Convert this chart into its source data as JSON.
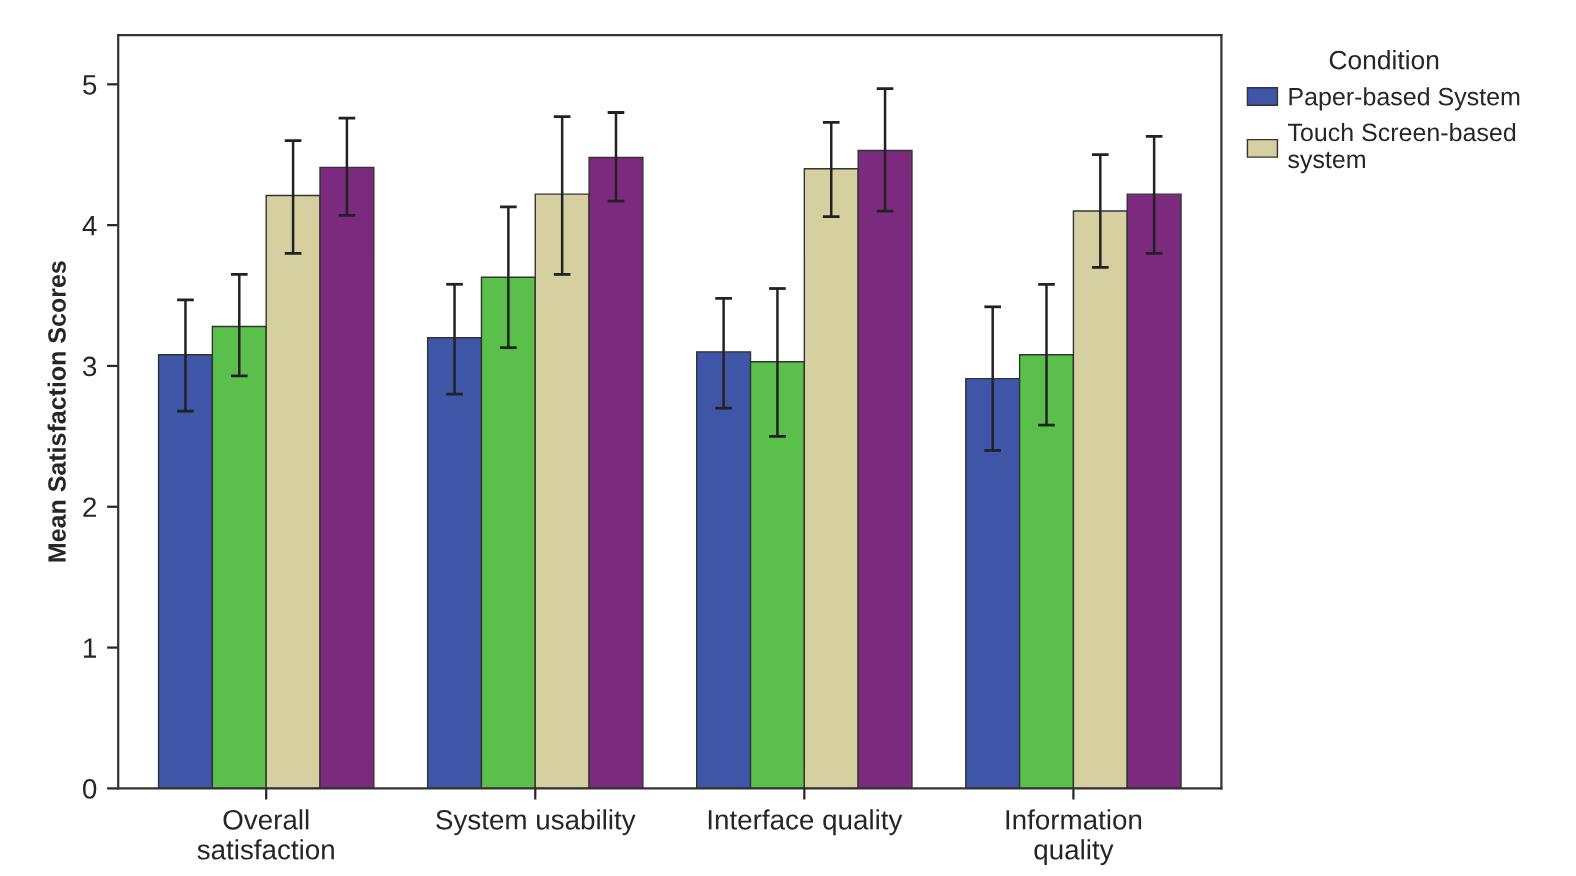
{
  "chart_data": {
    "type": "bar",
    "ylabel": "Mean Satisfaction Scores",
    "legend_title": "Condition",
    "legend": "right",
    "grid": false,
    "categories": [
      "Overall\nsatisfaction",
      "System usability",
      "Interface quality",
      "Information\nquality"
    ],
    "ylim": [
      0,
      5.35
    ],
    "yticks": [
      0,
      1,
      2,
      3,
      4,
      5
    ],
    "series": [
      {
        "name": "Paper-based System",
        "color": "#3f55a8",
        "values": [
          3.08,
          3.2,
          3.1,
          2.91
        ],
        "errors": [
          [
            2.68,
            3.47
          ],
          [
            2.8,
            3.58
          ],
          [
            2.7,
            3.48
          ],
          [
            2.4,
            3.42
          ]
        ]
      },
      {
        "color": "#5bbf4c",
        "values": [
          3.28,
          3.63,
          3.03,
          3.08
        ],
        "errors": [
          [
            2.93,
            3.65
          ],
          [
            3.13,
            4.13
          ],
          [
            2.5,
            3.55
          ],
          [
            2.58,
            3.58
          ]
        ]
      },
      {
        "name": "Touch Screen-based\nsystem",
        "color": "#d6d0a0",
        "values": [
          4.21,
          4.22,
          4.4,
          4.1
        ],
        "errors": [
          [
            3.8,
            4.6
          ],
          [
            3.65,
            4.77
          ],
          [
            4.06,
            4.73
          ],
          [
            3.7,
            4.5
          ]
        ]
      },
      {
        "color": "#7b2a7e",
        "values": [
          4.41,
          4.48,
          4.53,
          4.22
        ],
        "errors": [
          [
            4.07,
            4.76
          ],
          [
            4.17,
            4.8
          ],
          [
            4.1,
            4.97
          ],
          [
            3.8,
            4.63
          ]
        ]
      }
    ]
  }
}
